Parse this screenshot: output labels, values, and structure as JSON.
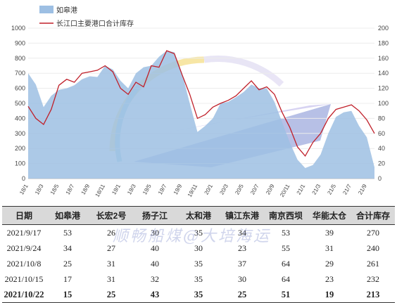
{
  "chart_data": {
    "type": "area+line",
    "legend": {
      "placement": "top-left",
      "area_name": "如皋港",
      "line_name": "长江口主要港口合计库存"
    },
    "left_axis": {
      "ylim": [
        0,
        1000
      ],
      "ticks": [
        "0",
        "100",
        "200",
        "300",
        "400",
        "500",
        "600",
        "700",
        "800",
        "900",
        "1000"
      ]
    },
    "right_axis": {
      "ylim": [
        0,
        200
      ],
      "ticks": [
        "0",
        "20",
        "40",
        "60",
        "80",
        "100",
        "120",
        "140",
        "160",
        "180",
        "200"
      ]
    },
    "x_tick_labels": [
      "18/1",
      "18/3",
      "18/5",
      "18/7",
      "18/9",
      "18/11",
      "19/1",
      "19/3",
      "19/5",
      "19/7",
      "19/9",
      "19/11",
      "20/1",
      "20/3",
      "20/5",
      "20/7",
      "20/9",
      "20/11",
      "21/1",
      "21/3",
      "21/5",
      "21/7",
      "21/9"
    ],
    "x_months_start": "2018-01",
    "x_months_end": "2021-10",
    "series_area": {
      "name": "如皋港",
      "color": "#9dbfe3",
      "x": [
        "2018-01",
        "2018-02",
        "2018-03",
        "2018-04",
        "2018-05",
        "2018-06",
        "2018-07",
        "2018-08",
        "2018-09",
        "2018-10",
        "2018-11",
        "2018-12",
        "2019-01",
        "2019-02",
        "2019-03",
        "2019-04",
        "2019-05",
        "2019-06",
        "2019-07",
        "2019-08",
        "2019-09",
        "2019-10",
        "2019-11",
        "2019-12",
        "2020-01",
        "2020-02",
        "2020-03",
        "2020-04",
        "2020-05",
        "2020-06",
        "2020-07",
        "2020-08",
        "2020-09",
        "2020-10",
        "2020-11",
        "2020-12",
        "2021-01",
        "2021-02",
        "2021-03",
        "2021-04",
        "2021-05",
        "2021-06",
        "2021-07",
        "2021-08",
        "2021-09",
        "2021-10"
      ],
      "values": [
        140,
        125,
        95,
        110,
        118,
        120,
        124,
        132,
        136,
        135,
        150,
        145,
        130,
        120,
        140,
        148,
        150,
        162,
        170,
        168,
        140,
        100,
        62,
        70,
        80,
        100,
        102,
        108,
        115,
        125,
        120,
        120,
        102,
        75,
        48,
        25,
        14,
        18,
        32,
        60,
        82,
        88,
        90,
        70,
        55,
        15
      ]
    },
    "series_line": {
      "name": "长江口主要港口合计库存",
      "color": "#c0202a",
      "x": [
        "2018-01",
        "2018-02",
        "2018-03",
        "2018-04",
        "2018-05",
        "2018-06",
        "2018-07",
        "2018-08",
        "2018-09",
        "2018-10",
        "2018-11",
        "2018-12",
        "2019-01",
        "2019-02",
        "2019-03",
        "2019-04",
        "2019-05",
        "2019-06",
        "2019-07",
        "2019-08",
        "2019-09",
        "2019-10",
        "2019-11",
        "2019-12",
        "2020-01",
        "2020-02",
        "2020-03",
        "2020-04",
        "2020-05",
        "2020-06",
        "2020-07",
        "2020-08",
        "2020-09",
        "2020-10",
        "2020-11",
        "2020-12",
        "2021-01",
        "2021-02",
        "2021-03",
        "2021-04",
        "2021-05",
        "2021-06",
        "2021-07",
        "2021-08",
        "2021-09",
        "2021-10"
      ],
      "values": [
        96,
        80,
        72,
        92,
        124,
        132,
        128,
        140,
        142,
        144,
        150,
        142,
        120,
        112,
        128,
        122,
        150,
        148,
        170,
        166,
        138,
        112,
        80,
        85,
        95,
        100,
        104,
        110,
        120,
        130,
        118,
        122,
        112,
        88,
        68,
        42,
        30,
        48,
        60,
        80,
        92,
        95,
        98,
        90,
        78,
        60
      ]
    }
  },
  "table": {
    "headers": [
      "日期",
      "如皋港",
      "长宏2号",
      "扬子江",
      "太和港",
      "镇江东港",
      "南京西坝",
      "华能太仓",
      "合计库存"
    ],
    "rows": [
      [
        "2021/9/17",
        "53",
        "26",
        "30",
        "35",
        "34",
        "53",
        "39",
        "270"
      ],
      [
        "2021/9/24",
        "34",
        "27",
        "40",
        "30",
        "23",
        "55",
        "31",
        "240"
      ],
      [
        "2021/10/8",
        "25",
        "31",
        "40",
        "35",
        "37",
        "64",
        "29",
        "261"
      ],
      [
        "2021/10/15",
        "17",
        "31",
        "32",
        "35",
        "30",
        "64",
        "23",
        "232"
      ],
      [
        "2021/10/22",
        "15",
        "25",
        "43",
        "35",
        "25",
        "51",
        "19",
        "213"
      ]
    ]
  },
  "watermark": "顺畅船煤@大培海运"
}
